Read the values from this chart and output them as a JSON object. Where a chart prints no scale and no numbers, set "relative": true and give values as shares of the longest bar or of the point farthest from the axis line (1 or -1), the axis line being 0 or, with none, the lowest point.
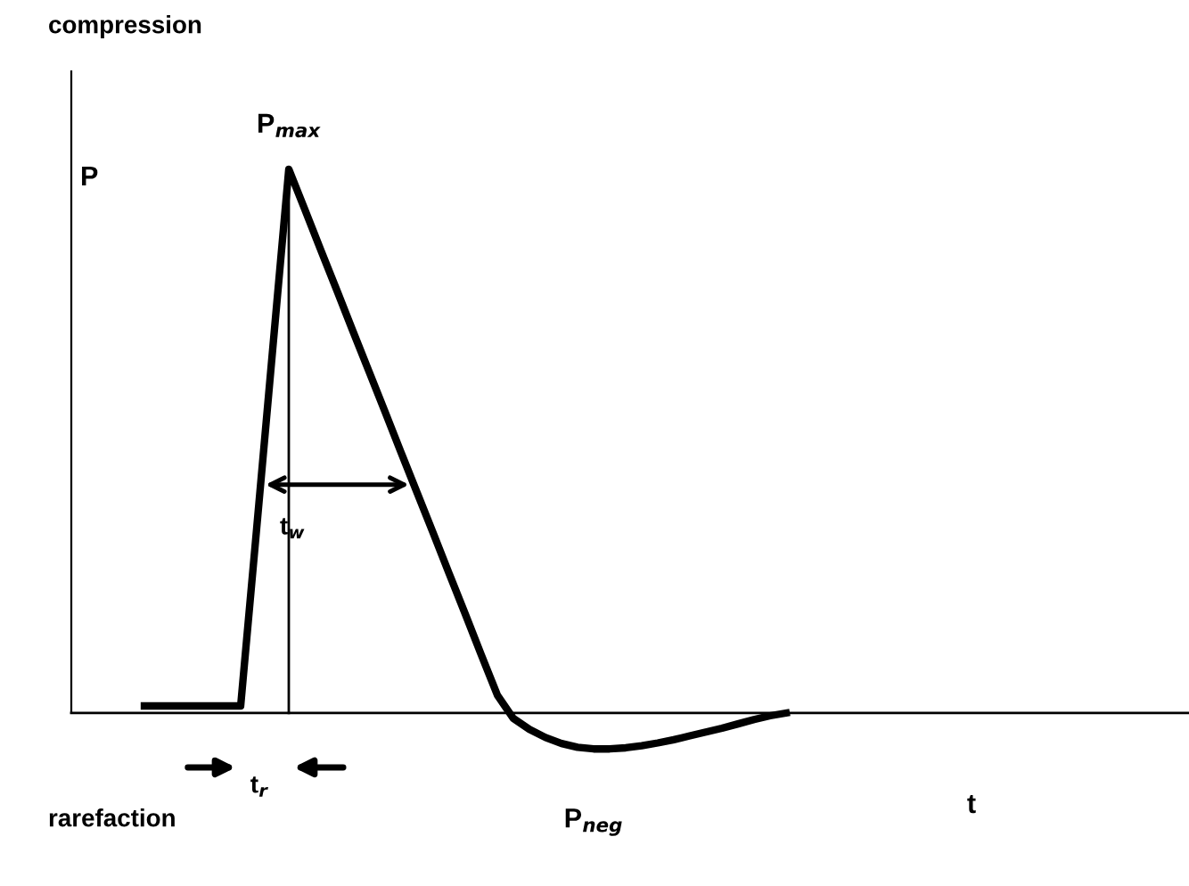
{
  "chart_data": {
    "type": "line",
    "relative": true,
    "ylabel": "P",
    "categories": [
      null,
      null,
      null,
      null,
      null,
      null,
      null,
      null,
      null,
      null,
      null,
      null,
      null,
      null,
      null,
      null,
      null,
      null,
      null,
      null,
      null,
      null,
      null,
      null,
      null,
      null,
      null,
      null,
      null,
      null,
      null,
      null,
      null,
      null,
      null,
      null,
      null,
      null,
      null,
      null,
      null
    ],
    "series": [
      {
        "color": "#000000",
        "values": [
          0.013,
          0.013,
          0.013,
          0.013,
          0.013,
          0.013,
          0.013,
          0.34,
          0.67,
          1.0,
          0.926,
          0.851,
          0.777,
          0.702,
          0.628,
          0.554,
          0.479,
          0.405,
          0.331,
          0.256,
          0.182,
          0.107,
          0.033,
          -0.01,
          -0.03,
          -0.045,
          -0.056,
          -0.063,
          -0.066,
          -0.066,
          -0.064,
          -0.06,
          -0.055,
          -0.049,
          -0.042,
          -0.035,
          -0.028,
          -0.02,
          -0.012,
          -0.005,
          0
        ]
      }
    ],
    "marker": "none",
    "line_style": "solid",
    "annotations": [
      "compression",
      "rarefaction",
      "P$_{max}$",
      "P$_{neg}$",
      "t$_{w}$",
      "t$_{r}$",
      "t"
    ]
  }
}
